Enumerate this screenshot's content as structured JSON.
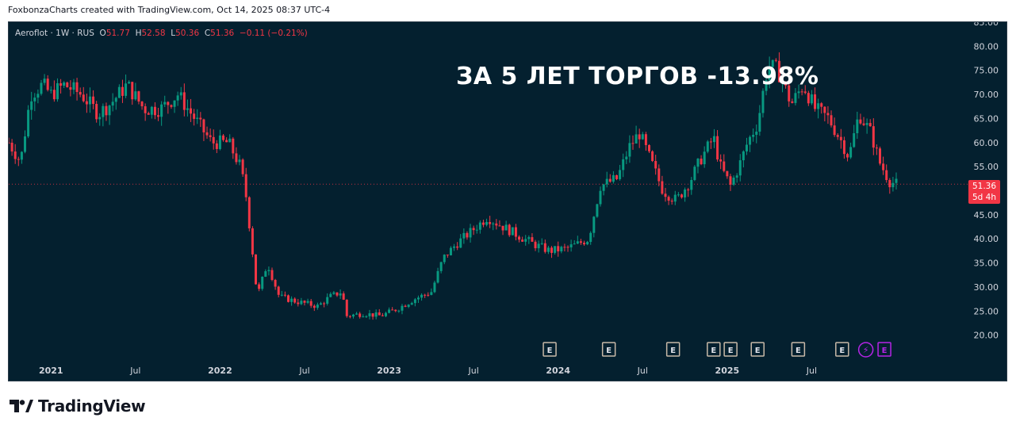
{
  "caption": "FoxbonzaCharts created with TradingView.com, Oct 14, 2025 08:37 UTC-4",
  "legend": {
    "symbol": "Aeroflot · 1W · RUS",
    "o_label": "O",
    "o_value": "51.77",
    "h_label": "H",
    "h_value": "52.58",
    "l_label": "L",
    "l_value": "50.36",
    "c_label": "C",
    "c_value": "51.36",
    "change": "−0.11 (−0.21%)"
  },
  "headline": "ЗА 5 ЛЕТ ТОРГОВ -13.98%",
  "price_tag": {
    "price": "51.36",
    "countdown": "5d 4h"
  },
  "brand": "TradingView",
  "colors": {
    "up": "#089981",
    "down": "#f23645",
    "bg": "#04202f",
    "text": "#d1d4dc",
    "earnings_border": "#c8b9a8",
    "event_purple": "#b524e6"
  },
  "chart_data": {
    "type": "candlestick",
    "series_name": "Aeroflot",
    "interval": "1W",
    "ylim": [
      15,
      85
    ],
    "y_ticks": [
      "20.00",
      "25.00",
      "30.00",
      "35.00",
      "40.00",
      "45.00",
      "50.00",
      "55.00",
      "60.00",
      "65.00",
      "70.00",
      "75.00",
      "80.00",
      "85.00"
    ],
    "x_ticks": [
      {
        "label": "2021",
        "x": 2021.0
      },
      {
        "label": "Jul",
        "x": 2021.5
      },
      {
        "label": "2022",
        "x": 2022.0
      },
      {
        "label": "Jul",
        "x": 2022.5
      },
      {
        "label": "2023",
        "x": 2023.0
      },
      {
        "label": "Jul",
        "x": 2023.5
      },
      {
        "label": "2024",
        "x": 2024.0
      },
      {
        "label": "Jul",
        "x": 2024.5
      },
      {
        "label": "2025",
        "x": 2025.0
      },
      {
        "label": "Jul",
        "x": 2025.5
      }
    ],
    "xlim": [
      2020.75,
      2026.38
    ],
    "current_price": 51.36,
    "weekly_close_path": [
      [
        2020.75,
        60
      ],
      [
        2020.82,
        56
      ],
      [
        2020.88,
        70
      ],
      [
        2020.95,
        72
      ],
      [
        2021.0,
        70
      ],
      [
        2021.08,
        72
      ],
      [
        2021.18,
        70
      ],
      [
        2021.28,
        66
      ],
      [
        2021.35,
        68
      ],
      [
        2021.45,
        72
      ],
      [
        2021.55,
        67
      ],
      [
        2021.65,
        67
      ],
      [
        2021.75,
        70
      ],
      [
        2021.85,
        65
      ],
      [
        2021.95,
        60
      ],
      [
        2022.05,
        60
      ],
      [
        2022.12,
        55
      ],
      [
        2022.15,
        50
      ],
      [
        2022.19,
        38
      ],
      [
        2022.22,
        28
      ],
      [
        2022.28,
        35
      ],
      [
        2022.35,
        28
      ],
      [
        2022.45,
        27
      ],
      [
        2022.58,
        26
      ],
      [
        2022.65,
        28
      ],
      [
        2022.72,
        29
      ],
      [
        2022.75,
        24
      ],
      [
        2022.85,
        24.5
      ],
      [
        2022.95,
        24
      ],
      [
        2023.05,
        25.5
      ],
      [
        2023.15,
        27.5
      ],
      [
        2023.25,
        29
      ],
      [
        2023.32,
        36
      ],
      [
        2023.4,
        39
      ],
      [
        2023.5,
        42
      ],
      [
        2023.58,
        44.5
      ],
      [
        2023.65,
        43
      ],
      [
        2023.75,
        41
      ],
      [
        2023.85,
        39
      ],
      [
        2023.95,
        37.5
      ],
      [
        2024.05,
        38
      ],
      [
        2024.12,
        39
      ],
      [
        2024.18,
        40
      ],
      [
        2024.25,
        51
      ],
      [
        2024.35,
        52.5
      ],
      [
        2024.42,
        59
      ],
      [
        2024.48,
        62
      ],
      [
        2024.55,
        56
      ],
      [
        2024.62,
        50
      ],
      [
        2024.7,
        48
      ],
      [
        2024.78,
        52
      ],
      [
        2024.85,
        57
      ],
      [
        2024.92,
        61
      ],
      [
        2024.96,
        55
      ],
      [
        2025.02,
        51
      ],
      [
        2025.08,
        56
      ],
      [
        2025.12,
        60
      ],
      [
        2025.18,
        64
      ],
      [
        2025.24,
        76
      ],
      [
        2025.3,
        75
      ],
      [
        2025.38,
        68
      ],
      [
        2025.45,
        72
      ],
      [
        2025.52,
        67
      ],
      [
        2025.6,
        65
      ],
      [
        2025.68,
        60
      ],
      [
        2025.72,
        57
      ],
      [
        2025.78,
        66
      ],
      [
        2025.85,
        62
      ],
      [
        2025.9,
        56
      ],
      [
        2025.96,
        52
      ],
      [
        2026.0,
        51.36
      ]
    ],
    "events": [
      {
        "label": "E",
        "x": 2023.95,
        "kind": "earnings"
      },
      {
        "label": "E",
        "x": 2024.3,
        "kind": "earnings"
      },
      {
        "label": "E",
        "x": 2024.68,
        "kind": "earnings"
      },
      {
        "label": "E",
        "x": 2024.92,
        "kind": "earnings"
      },
      {
        "label": "E",
        "x": 2025.02,
        "kind": "earnings"
      },
      {
        "label": "E",
        "x": 2025.18,
        "kind": "earnings"
      },
      {
        "label": "E",
        "x": 2025.42,
        "kind": "earnings"
      },
      {
        "label": "E",
        "x": 2025.68,
        "kind": "earnings"
      },
      {
        "label": "⚡",
        "x": 2025.82,
        "kind": "dividend"
      },
      {
        "label": "E",
        "x": 2025.93,
        "kind": "upcoming"
      }
    ]
  }
}
